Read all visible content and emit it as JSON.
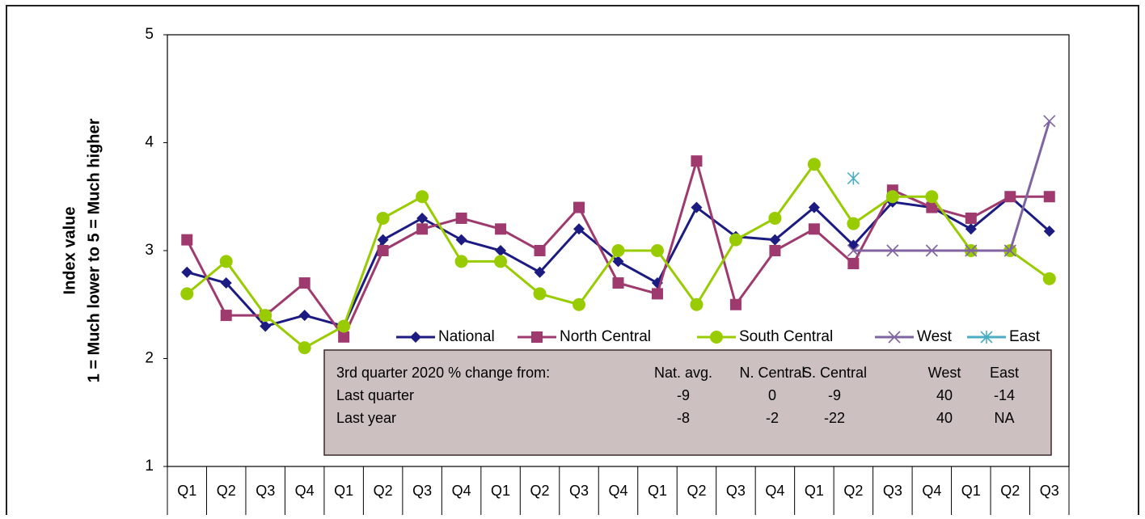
{
  "chart_data": {
    "type": "line",
    "y_axis_label": [
      "Index value",
      "1 = Much lower  to  5 = Much higher"
    ],
    "categories": [
      "Q1",
      "Q2",
      "Q3",
      "Q4",
      "Q1",
      "Q2",
      "Q3",
      "Q4",
      "Q1",
      "Q2",
      "Q3",
      "Q4",
      "Q1",
      "Q2",
      "Q3",
      "Q4",
      "Q1",
      "Q2",
      "Q3",
      "Q4",
      "Q1",
      "Q2",
      "Q3"
    ],
    "ylim": [
      1,
      5
    ],
    "yticks": [
      1,
      2,
      3,
      4,
      5
    ],
    "legend_position": "inside-bottom",
    "series": [
      {
        "name": "National",
        "color": "#1b1b82",
        "marker": "diamond",
        "values": [
          2.8,
          2.7,
          2.3,
          2.4,
          2.3,
          3.1,
          3.3,
          3.1,
          3.0,
          2.8,
          3.2,
          2.9,
          2.7,
          3.4,
          3.13,
          3.1,
          3.4,
          3.05,
          3.45,
          3.4,
          3.2,
          3.5,
          3.18
        ]
      },
      {
        "name": "North Central",
        "color": "#9e3a6e",
        "marker": "square",
        "values": [
          3.1,
          2.4,
          2.4,
          2.7,
          2.2,
          3.0,
          3.2,
          3.3,
          3.2,
          3.0,
          3.4,
          2.7,
          2.6,
          3.83,
          2.5,
          3.0,
          3.2,
          2.88,
          3.56,
          3.4,
          3.3,
          3.5,
          3.5
        ]
      },
      {
        "name": "South Central",
        "color": "#99cc00",
        "marker": "circle",
        "values": [
          2.6,
          2.9,
          2.4,
          2.1,
          2.3,
          3.3,
          3.5,
          2.9,
          2.9,
          2.6,
          2.5,
          3.0,
          3.0,
          2.5,
          3.1,
          3.3,
          3.8,
          3.25,
          3.5,
          3.5,
          3.0,
          3.0,
          2.74
        ]
      },
      {
        "name": "West",
        "color": "#8064a2",
        "marker": "x",
        "values": [
          null,
          null,
          null,
          null,
          null,
          null,
          null,
          null,
          null,
          null,
          null,
          null,
          null,
          null,
          null,
          null,
          null,
          3.0,
          3.0,
          3.0,
          3.0,
          3.0,
          4.2
        ]
      },
      {
        "name": "East",
        "color": "#4bacc6",
        "marker": "star",
        "values": [
          null,
          null,
          null,
          null,
          null,
          null,
          null,
          null,
          null,
          null,
          null,
          null,
          null,
          null,
          null,
          null,
          null,
          3.67,
          null,
          null,
          null,
          null,
          null
        ]
      }
    ],
    "annotation_table": {
      "header": [
        "3rd  quarter 2020 % change from:",
        "Nat. avg.",
        "N. Central",
        "S. Central",
        "West",
        "East"
      ],
      "rows": [
        [
          "Last quarter",
          "-9",
          "0",
          "-9",
          "40",
          "-14"
        ],
        [
          "Last year",
          "-8",
          "-2",
          "-22",
          "40",
          "NA"
        ]
      ]
    }
  }
}
